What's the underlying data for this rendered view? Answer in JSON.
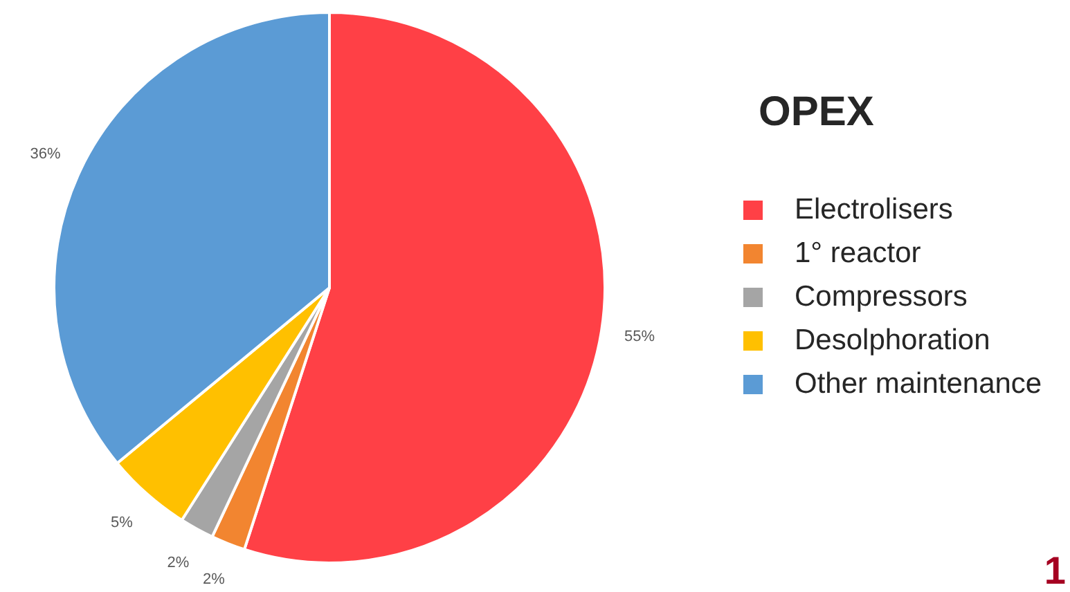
{
  "chart_data": {
    "type": "pie",
    "title": "OPEX",
    "categories": [
      "Electrolisers",
      "1° reactor",
      "Compressors",
      "Desolphoration",
      "Other maintenance"
    ],
    "values": [
      55,
      2,
      2,
      5,
      36
    ],
    "colors": [
      "#ff4046",
      "#f28530",
      "#a5a5a5",
      "#ffc000",
      "#5b9bd5"
    ],
    "value_labels": [
      "55%",
      "2%",
      "2%",
      "5%",
      "36%"
    ],
    "legend": "right",
    "annotations": [
      "1"
    ]
  }
}
